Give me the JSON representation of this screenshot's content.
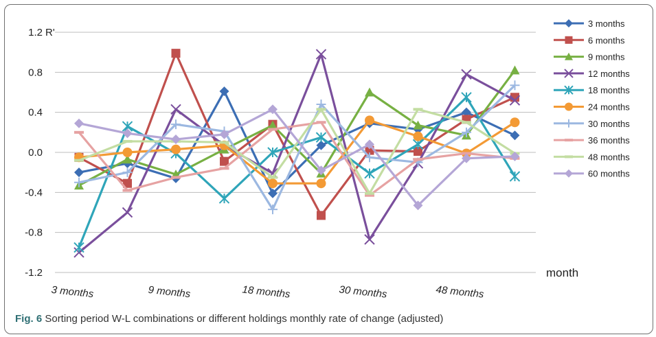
{
  "caption": {
    "label": "Fig. 6",
    "text": "Sorting period W-L combinations or different holdings monthly rate of change (adjusted)"
  },
  "chart_data": {
    "type": "line",
    "ylabel": "R'",
    "xlabel": "month",
    "ylim": [
      -1.2,
      1.2
    ],
    "yticks": [
      1.2,
      0.8,
      0.4,
      0.0,
      -0.4,
      -0.8,
      -1.2
    ],
    "ytick_labels": [
      "1.2",
      "0.8",
      "0.4",
      "0.0",
      "-0.4",
      "-0.8",
      "-1.2"
    ],
    "x_count": 10,
    "x_tick_labels": [
      "3 months",
      "9 months",
      "18 months",
      "30 months",
      "48 months"
    ],
    "x_tick_label_positions": [
      0,
      2,
      4,
      6,
      8
    ],
    "grid": "horizontal",
    "legend_position": "right",
    "series": [
      {
        "name": "3 months",
        "color": "#3c6eb4",
        "marker": "diamond",
        "values": [
          -0.2,
          -0.11,
          -0.26,
          0.61,
          -0.41,
          0.07,
          0.29,
          0.23,
          0.4,
          0.17
        ]
      },
      {
        "name": "6 months",
        "color": "#c0504d",
        "marker": "square",
        "values": [
          -0.05,
          -0.31,
          0.99,
          -0.09,
          0.28,
          -0.63,
          0.02,
          0.01,
          0.33,
          0.55
        ]
      },
      {
        "name": "9 months",
        "color": "#77b043",
        "marker": "triangle",
        "values": [
          -0.33,
          -0.07,
          -0.22,
          0.03,
          0.27,
          -0.21,
          0.6,
          0.27,
          0.17,
          0.82
        ]
      },
      {
        "name": "12 months",
        "color": "#7a4f9c",
        "marker": "x",
        "values": [
          -1.0,
          -0.6,
          0.43,
          0.07,
          -0.21,
          0.98,
          -0.87,
          -0.11,
          0.78,
          0.52
        ]
      },
      {
        "name": "18 months",
        "color": "#2fa5b9",
        "marker": "star",
        "values": [
          -0.95,
          0.26,
          -0.01,
          -0.46,
          0.0,
          0.15,
          -0.21,
          0.08,
          0.55,
          -0.24
        ]
      },
      {
        "name": "24 months",
        "color": "#f39a35",
        "marker": "circle",
        "values": [
          -0.05,
          0.0,
          0.03,
          0.07,
          -0.31,
          -0.31,
          0.32,
          0.16,
          -0.01,
          0.3
        ]
      },
      {
        "name": "30 months",
        "color": "#9cb8e1",
        "marker": "plus",
        "values": [
          -0.3,
          -0.2,
          0.28,
          0.21,
          -0.57,
          0.48,
          -0.05,
          -0.1,
          0.2,
          0.67
        ]
      },
      {
        "name": "36 months",
        "color": "#e6a2a2",
        "marker": "dash",
        "values": [
          0.2,
          -0.38,
          -0.25,
          -0.16,
          0.23,
          0.3,
          -0.43,
          -0.07,
          -0.01,
          -0.06
        ]
      },
      {
        "name": "48 months",
        "color": "#c3dda2",
        "marker": "dash",
        "values": [
          -0.08,
          0.11,
          0.11,
          0.1,
          -0.25,
          0.43,
          -0.41,
          0.43,
          0.3,
          -0.01
        ]
      },
      {
        "name": "60 months",
        "color": "#b4a6d6",
        "marker": "diamond",
        "values": [
          0.29,
          0.19,
          0.13,
          0.18,
          0.43,
          -0.18,
          0.08,
          -0.53,
          -0.06,
          -0.04
        ]
      }
    ]
  }
}
